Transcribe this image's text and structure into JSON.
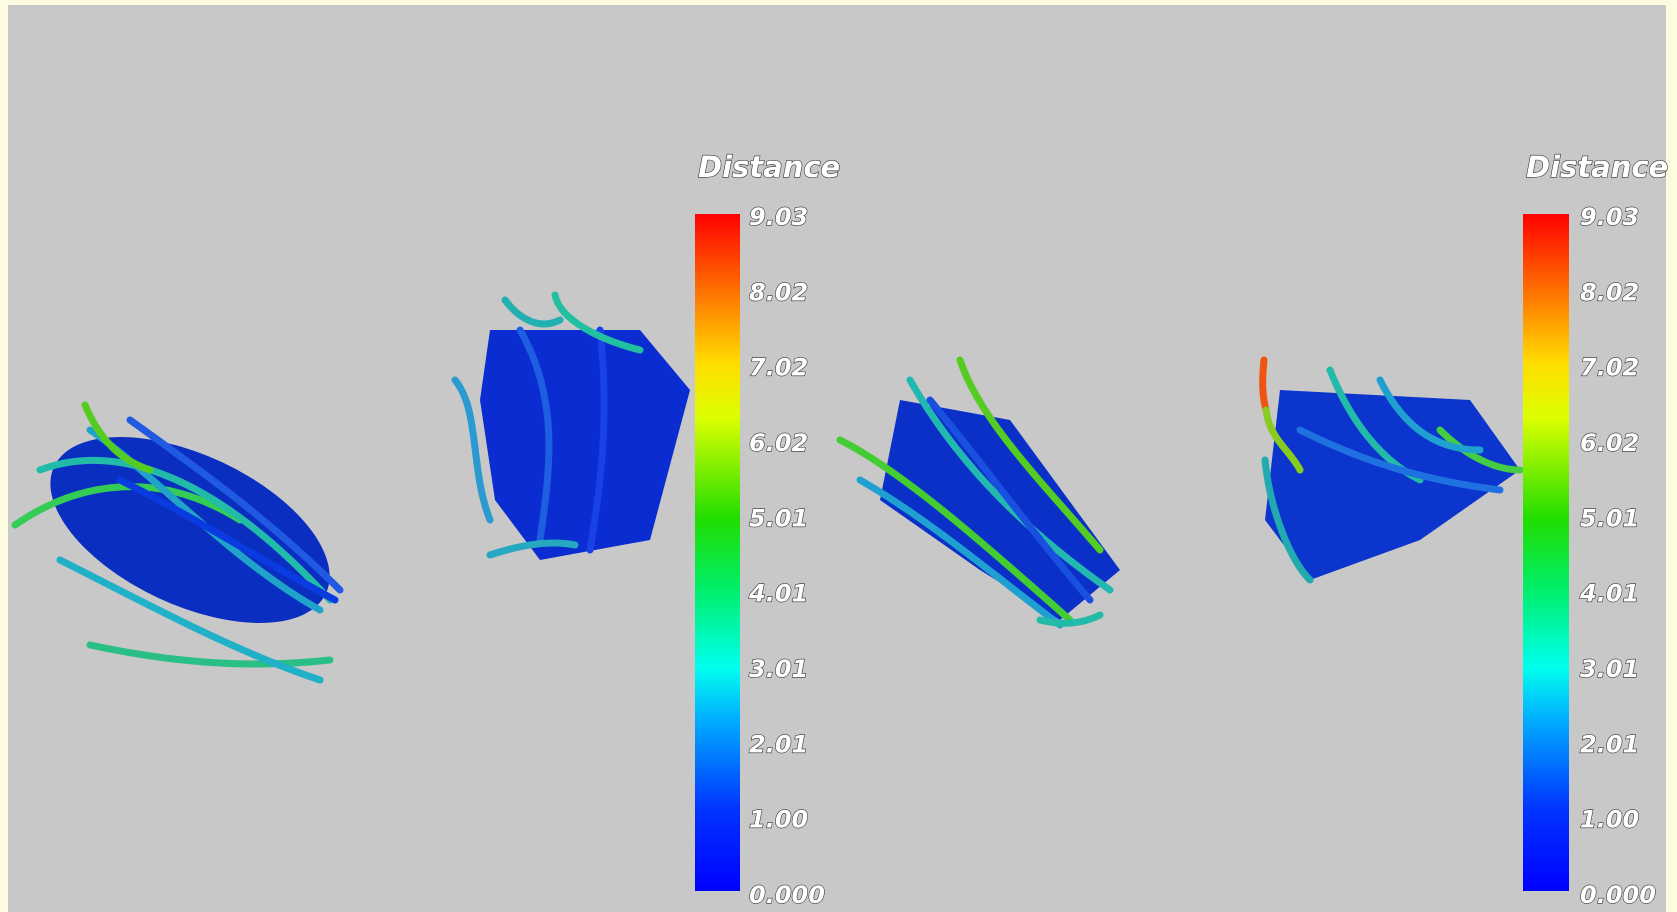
{
  "panels": [
    {
      "legend": {
        "title": "Distance",
        "ticks": [
          "9.03",
          "8.02",
          "7.02",
          "6.02",
          "5.01",
          "4.01",
          "3.01",
          "2.01",
          "1.00",
          "0.000"
        ]
      }
    },
    {
      "legend": {
        "title": "Distance",
        "ticks": [
          "9.03",
          "8.02",
          "7.02",
          "6.02",
          "5.01",
          "4.01",
          "3.01",
          "2.01",
          "1.00",
          "0.000"
        ]
      }
    }
  ]
}
